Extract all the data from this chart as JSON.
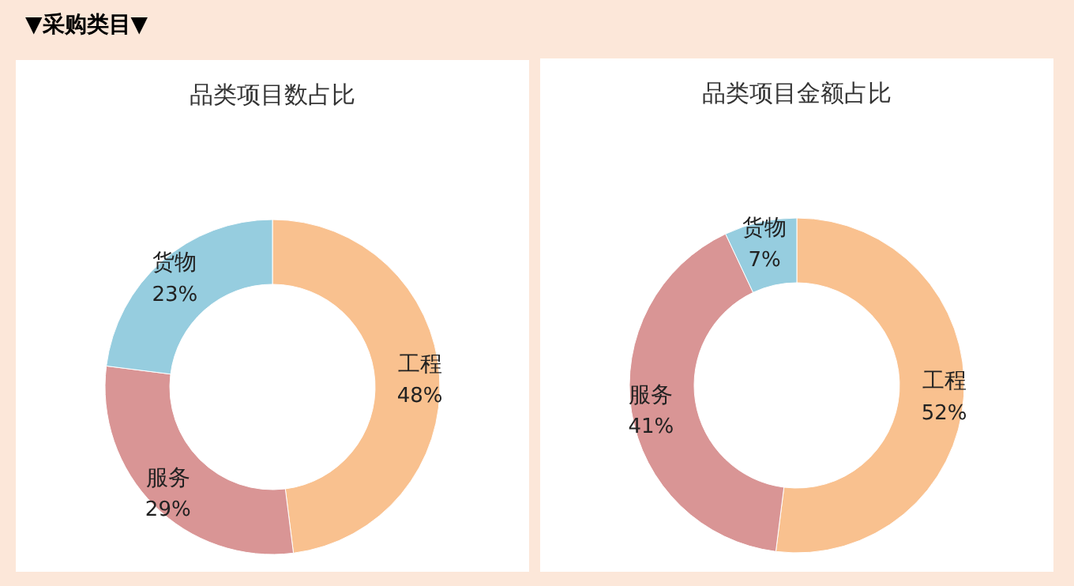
{
  "chart_data": [
    {
      "type": "other",
      "title": "▼采购类目▼"
    },
    {
      "type": "donut",
      "title": "品类项目数占比",
      "categories": [
        "工程",
        "服务",
        "货物"
      ],
      "values": [
        48,
        29,
        23
      ],
      "value_labels": [
        "48%",
        "29%",
        "23%"
      ],
      "colors": [
        "#f9c18f",
        "#d99595",
        "#96cddf"
      ]
    },
    {
      "type": "donut",
      "title": "品类项目金额占比",
      "categories": [
        "工程",
        "服务",
        "货物"
      ],
      "values": [
        52,
        41,
        7
      ],
      "value_labels": [
        "52%",
        "41%",
        "7%"
      ],
      "colors": [
        "#f9c18f",
        "#d99595",
        "#96cddf"
      ]
    }
  ]
}
